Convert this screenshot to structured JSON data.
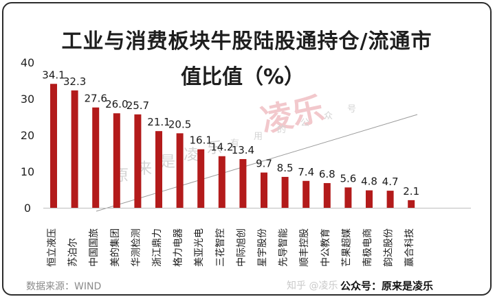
{
  "chart_data": {
    "type": "bar",
    "title_lines": [
      "工业与消费板块牛股陆股通持仓/流通市",
      "值比值（%）"
    ],
    "xlabel": "",
    "ylabel": "",
    "ylim": [
      0,
      40
    ],
    "yticks": [
      0,
      10,
      20,
      30,
      40
    ],
    "grid": false,
    "categories": [
      "恒立液压",
      "苏泊尔",
      "中国国旅",
      "美的集团",
      "华测检测",
      "浙江鼎力",
      "格力电器",
      "美亚光电",
      "三花智控",
      "中际旭创",
      "星宇股份",
      "先导智能",
      "顺丰控股",
      "中公教育",
      "芒果超媒",
      "南极电商",
      "韵达股份",
      "赢合科技"
    ],
    "values": [
      34.1,
      32.3,
      27.6,
      26.0,
      25.7,
      21.1,
      20.5,
      16.1,
      14.2,
      13.4,
      9.7,
      8.5,
      7.4,
      6.8,
      5.6,
      4.8,
      4.7,
      2.1
    ],
    "value_labels": [
      "34.1",
      "32.3",
      "27.6",
      "26.0",
      "25.7",
      "21.1",
      "20.5",
      "16.1",
      "14.2",
      "13.4",
      "9.7",
      "8.5",
      "7.4",
      "6.8",
      "5.6",
      "4.8",
      "4.7",
      "2.1"
    ],
    "bar_color": "#b31b1b"
  },
  "footer": {
    "source": "数据来源：WIND",
    "wechat": "公众号：原来是凌乐",
    "zhihu": "知乎 @凌乐"
  },
  "watermarks": {
    "seal": "凌乐",
    "diagonal": [
      "原",
      "来",
      "是",
      "凌",
      "乐",
      "有",
      "用",
      "的",
      "公",
      "众",
      "号"
    ]
  }
}
